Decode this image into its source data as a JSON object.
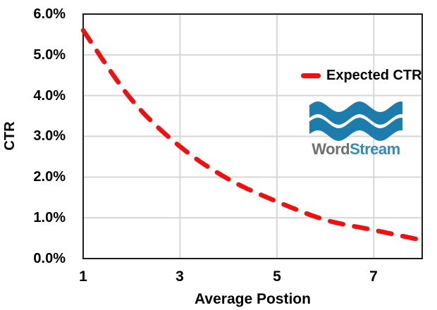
{
  "chart_data": {
    "type": "line",
    "title": "",
    "xlabel": "Average Postion",
    "ylabel": "CTR",
    "x": [
      1,
      2,
      3,
      4,
      5,
      6,
      7,
      8
    ],
    "series": [
      {
        "name": "Expected CTR",
        "values_percent": [
          5.6,
          3.9,
          2.75,
          1.95,
          1.4,
          0.95,
          0.7,
          0.45
        ]
      }
    ],
    "xlim": [
      1,
      8
    ],
    "ylim_percent": [
      0,
      6
    ],
    "xtick_labels": [
      "1",
      "3",
      "5",
      "7"
    ],
    "xtick_values": [
      1,
      3,
      5,
      7
    ],
    "ytick_labels": [
      "6.0%",
      "5.0%",
      "4.0%",
      "3.0%",
      "2.0%",
      "1.0%",
      "0.0%"
    ],
    "ytick_values": [
      6,
      5,
      4,
      3,
      2,
      1,
      0
    ],
    "grid": true,
    "legend_position": "inside-right",
    "line_style": "dashed-round"
  },
  "legend": {
    "label": "Expected CTR"
  },
  "logo": {
    "word": "Word",
    "stream": "Stream"
  },
  "colors": {
    "line": "#f20f0f",
    "grid": "#d6d6d6",
    "border": "#1c1c1c",
    "wave_blue": "#1c7dad",
    "word_gray": "#6e6f71",
    "stream_blue": "#3489bd",
    "text": "#000000",
    "background": "#ffffff"
  }
}
